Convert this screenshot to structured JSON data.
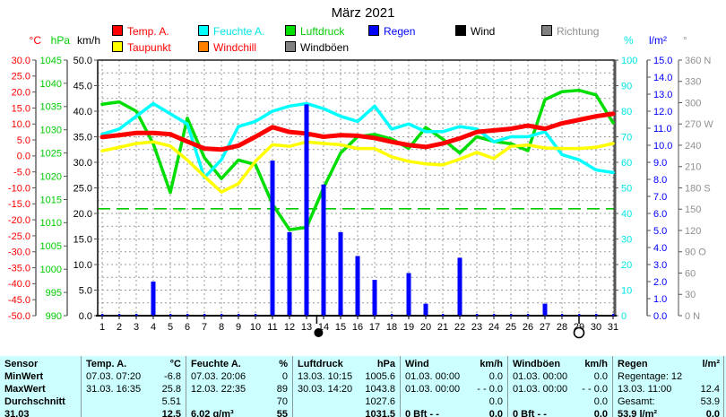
{
  "title": "März 2021",
  "colors": {
    "temp": "#ff0000",
    "feuchte": "#00ffff",
    "luftdruck": "#00dd00",
    "taupunkt": "#ffff00",
    "windchill": "#ff8000",
    "regen": "#0000ff",
    "wind": "#000000",
    "richtung": "#808080",
    "windboeen": "#808080",
    "grid": "#9a9a9a",
    "frame": "#444444",
    "table_bg": "#ccffff",
    "ref_1013": "#00cc00"
  },
  "legend": {
    "row1": [
      {
        "label": "Temp. A.",
        "swatch": "#ff0000",
        "text_color": "#ff0000"
      },
      {
        "label": "Feuchte A.",
        "swatch": "#00ffff",
        "text_color": "#00e5e5"
      },
      {
        "label": "Luftdruck",
        "swatch": "#00dd00",
        "text_color": "#00cc00"
      },
      {
        "label": "Regen",
        "swatch": "#0000ff",
        "text_color": "#0000ff"
      },
      {
        "label": "Wind",
        "swatch": "#000000",
        "text_color": "#000000"
      },
      {
        "label": "Richtung",
        "swatch": "#808080",
        "text_color": "#909090"
      }
    ],
    "row2": [
      {
        "label": "Taupunkt",
        "swatch": "#ffff00",
        "text_color": "#ff0000"
      },
      {
        "label": "Windchill",
        "swatch": "#ff8000",
        "text_color": "#ff0000"
      },
      {
        "label": "Windböen",
        "swatch": "#808080",
        "text_color": "#000000"
      }
    ]
  },
  "axes": {
    "left": [
      {
        "unit": "°C",
        "color": "#ff0000",
        "min": -50,
        "max": 30,
        "step": 5,
        "decimals": 1
      },
      {
        "unit": "hPa",
        "color": "#00cc00",
        "min": 990,
        "max": 1045,
        "step": 5,
        "decimals": 0
      },
      {
        "unit": "km/h",
        "color": "#000000",
        "min": 0,
        "max": 50,
        "step": 5,
        "decimals": 1
      }
    ],
    "right": [
      {
        "unit": "%",
        "color": "#00e5e5",
        "min": 0,
        "max": 100,
        "step": 10,
        "decimals": 0
      },
      {
        "unit": "l/m²",
        "color": "#0000ff",
        "min": 0,
        "max": 15,
        "step": 1,
        "decimals": 1
      },
      {
        "unit": "°",
        "color": "#909090",
        "min": 0,
        "max": 360,
        "step": 30,
        "decimals": 0,
        "labels_bottom_up": [
          "0 N",
          "30",
          "60",
          "90 O",
          "120",
          "150",
          "180 S",
          "210",
          "240",
          "270 W",
          "300",
          "330",
          "360 N"
        ]
      }
    ],
    "x_day_first": 1,
    "x_day_last": 31
  },
  "chart_data": {
    "type": "line+bar",
    "x_days": [
      1,
      2,
      3,
      4,
      5,
      6,
      7,
      8,
      9,
      10,
      11,
      12,
      13,
      14,
      15,
      16,
      17,
      18,
      19,
      20,
      21,
      22,
      23,
      24,
      25,
      26,
      27,
      28,
      29,
      30,
      31
    ],
    "series": [
      {
        "name": "Luftdruck",
        "unit": "hPa",
        "style": "line",
        "color_key": "luftdruck",
        "width": 3.5,
        "values": [
          1035.5,
          1036,
          1034,
          1027,
          1016.5,
          1032.5,
          1024,
          1019.5,
          1023.5,
          1022.5,
          1014,
          1008.5,
          1009,
          1017.5,
          1025,
          1028.5,
          1029,
          1028,
          1026,
          1030.5,
          1028,
          1025,
          1028.5,
          1027.5,
          1027,
          1025.5,
          1036.5,
          1038.2,
          1038.5,
          1037.5,
          1031.5
        ]
      },
      {
        "name": "Feuchte A.",
        "unit": "%",
        "style": "line",
        "color_key": "feuchte",
        "width": 3.5,
        "values": [
          71,
          73,
          78,
          83,
          79,
          75,
          54,
          61,
          74,
          76,
          80,
          82,
          83,
          81,
          78,
          76,
          82,
          73,
          75,
          72,
          72,
          74,
          73,
          68,
          70,
          70,
          72,
          63,
          61,
          57,
          56
        ]
      },
      {
        "name": "Taupunkt",
        "unit": "°C",
        "style": "line",
        "color_key": "taupunkt",
        "width": 3.5,
        "values": [
          1.6,
          2.7,
          3.9,
          4.4,
          3.1,
          -1.3,
          -6.4,
          -11.3,
          -8.7,
          -1.7,
          3.5,
          3.0,
          4.4,
          3.9,
          3.5,
          2.3,
          2.3,
          -0.3,
          -1.7,
          -2.5,
          -2.8,
          -1.0,
          1.1,
          -0.8,
          3.0,
          3.4,
          2.5,
          2.3,
          2.3,
          2.7,
          3.9
        ]
      },
      {
        "name": "Temp. A.",
        "unit": "°C",
        "style": "line",
        "color_key": "temp",
        "width": 5,
        "values": [
          5.9,
          6.5,
          7.2,
          7.2,
          6.8,
          4.5,
          2.3,
          2.0,
          3.2,
          6.0,
          9.0,
          7.5,
          7.0,
          6.0,
          6.5,
          6.3,
          5.6,
          4.4,
          3.4,
          2.8,
          3.9,
          5.5,
          7.5,
          8.0,
          8.5,
          9.5,
          8.5,
          10.2,
          11.3,
          12.4,
          13.2
        ]
      },
      {
        "name": "Wind",
        "unit": "km/h",
        "style": "line",
        "color_key": "wind",
        "width": 2,
        "values": [
          0,
          0,
          0,
          0,
          0,
          0,
          0,
          0,
          0,
          0,
          0,
          0,
          0,
          0,
          0,
          0,
          0,
          0,
          0,
          0,
          0,
          0,
          0,
          0,
          0,
          0,
          0,
          0,
          0,
          0,
          0
        ]
      },
      {
        "name": "Regen",
        "unit": "l/m²",
        "style": "bar",
        "color_key": "regen",
        "values": [
          0,
          0,
          0,
          2.0,
          0,
          0,
          0,
          0,
          0,
          0,
          9.1,
          4.9,
          12.4,
          7.7,
          4.9,
          3.5,
          2.1,
          0,
          2.5,
          0.7,
          0,
          3.4,
          0,
          0,
          0,
          0,
          0.7,
          0,
          0,
          0,
          0
        ]
      }
    ],
    "reference_line": {
      "value": 1013,
      "unit": "hPa"
    },
    "moon_phases": [
      {
        "day": 13.6,
        "phase": "new-moon"
      },
      {
        "day": 29,
        "phase": "full-moon"
      }
    ],
    "grid": "on",
    "legend_position": "top"
  },
  "table": {
    "row_labels": [
      "Sensor",
      "MinWert",
      "MaxWert",
      "Durchschnitt",
      "31.03"
    ],
    "columns": [
      {
        "name": "Temp. A.",
        "unit": "°C",
        "rows": [
          [
            "07.03. 07:20",
            "-6.8"
          ],
          [
            "31.03. 16:35",
            "25.8"
          ],
          [
            "",
            "5.51"
          ],
          [
            "",
            "12.5"
          ]
        ]
      },
      {
        "name": "Feuchte A.",
        "unit": "%",
        "rows": [
          [
            "07.03. 20:06",
            "0"
          ],
          [
            "12.03. 22:35",
            "89"
          ],
          [
            "",
            "70"
          ],
          [
            "6.02 g/m³",
            "55"
          ]
        ]
      },
      {
        "name": "Luftdruck",
        "unit": "hPa",
        "rows": [
          [
            "13.03. 10:15",
            "1005.6"
          ],
          [
            "30.03. 14:20",
            "1043.8"
          ],
          [
            "",
            "1027.6"
          ],
          [
            "",
            "1031.5"
          ]
        ]
      },
      {
        "name": "Wind",
        "unit": "km/h",
        "rows": [
          [
            "01.03. 00:00",
            "0.0"
          ],
          [
            "01.03. 00:00",
            "- - 0.0"
          ],
          [
            "",
            "0.0"
          ],
          [
            "0 Bft - -",
            "0.0"
          ]
        ]
      },
      {
        "name": "Windböen",
        "unit": "km/h",
        "rows": [
          [
            "01.03. 00:00",
            "0.0"
          ],
          [
            "01.03. 00:00",
            "- - 0.0"
          ],
          [
            "",
            "0.0"
          ],
          [
            "0 Bft - -",
            "0.0"
          ]
        ]
      },
      {
        "name": "Regen",
        "unit": "l/m²",
        "rows": [
          [
            "Regentage: 12",
            ""
          ],
          [
            "13.03. 11:00",
            "12.4"
          ],
          [
            "Gesamt:",
            "53.9"
          ],
          [
            "53.9 l/m²",
            "0.0"
          ]
        ]
      }
    ]
  }
}
